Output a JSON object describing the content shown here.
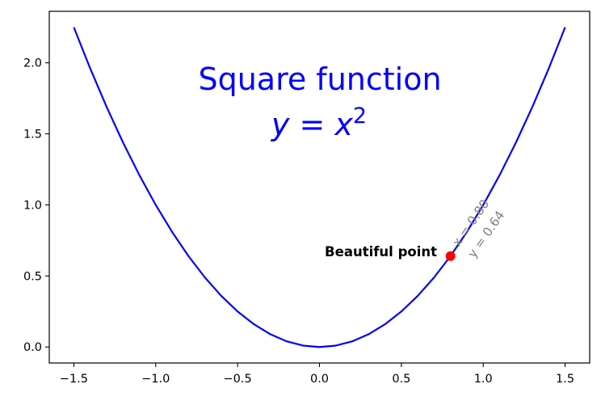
{
  "chart_data": {
    "type": "line",
    "title": "",
    "xlabel": "",
    "ylabel": "",
    "xlim": [
      -1.65,
      1.65
    ],
    "ylim": [
      -0.1125,
      2.3625
    ],
    "grid": false,
    "x_ticks": [
      -1.5,
      -1.0,
      -0.5,
      0.0,
      0.5,
      1.0,
      1.5
    ],
    "x_tick_labels": [
      "−1.5",
      "−1.0",
      "−0.5",
      "0.0",
      "0.5",
      "1.0",
      "1.5"
    ],
    "y_ticks": [
      0.0,
      0.5,
      1.0,
      1.5,
      2.0
    ],
    "y_tick_labels": [
      "0.0",
      "0.5",
      "1.0",
      "1.5",
      "2.0"
    ],
    "series": [
      {
        "color": "#0000ff",
        "x": [
          -1.5,
          -1.4,
          -1.3,
          -1.2,
          -1.1,
          -1.0,
          -0.9,
          -0.8,
          -0.7,
          -0.6,
          -0.5,
          -0.4,
          -0.3,
          -0.2,
          -0.1,
          0.0,
          0.1,
          0.2,
          0.3,
          0.4,
          0.5,
          0.6,
          0.7,
          0.8,
          0.9,
          1.0,
          1.1,
          1.2,
          1.3,
          1.4,
          1.5
        ],
        "y": [
          2.25,
          1.96,
          1.69,
          1.44,
          1.21,
          1.0,
          0.81,
          0.64,
          0.49,
          0.36,
          0.25,
          0.16,
          0.09,
          0.04,
          0.01,
          0.0,
          0.01,
          0.04,
          0.09,
          0.16,
          0.25,
          0.36,
          0.49,
          0.64,
          0.81,
          1.0,
          1.21,
          1.44,
          1.69,
          1.96,
          2.25
        ]
      }
    ],
    "annotations": {
      "heading": "Square function",
      "formula_base": "y = x",
      "formula_exponent": "2",
      "formula_color": "#0000ff",
      "marked_point": {
        "x": 0.8,
        "y": 0.64,
        "color": "#ff0000"
      },
      "point_label": "Beautiful point",
      "coord_x_label": "x = 0.80",
      "coord_y_label": "y = 0.64",
      "coord_label_color": "#808080"
    }
  }
}
